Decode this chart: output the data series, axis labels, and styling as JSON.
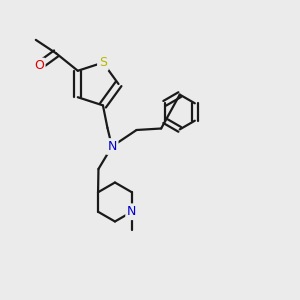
{
  "background_color": "#ebebeb",
  "bond_color": "#1a1a1a",
  "S_color": "#b8b800",
  "O_color": "#dd0000",
  "N_color": "#0000cc",
  "line_width": 1.6,
  "figsize": [
    3.0,
    3.0
  ],
  "dpi": 100,
  "xlim": [
    0,
    10
  ],
  "ylim": [
    0,
    10
  ]
}
